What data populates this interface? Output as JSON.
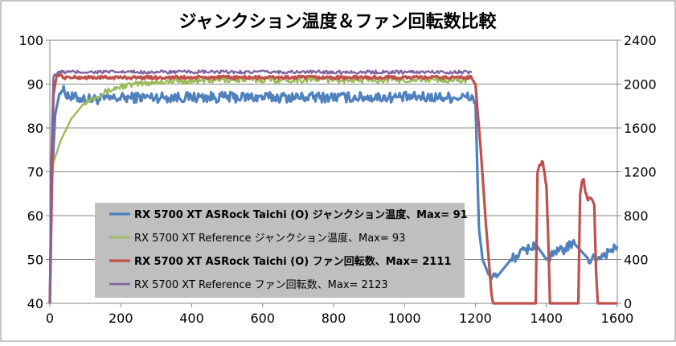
{
  "chart_data": {
    "type": "line",
    "title": "ジャンクション温度＆ファン回転数比較",
    "xlabel": "",
    "ylabel": "",
    "y2label": "",
    "xlim": [
      0,
      1600
    ],
    "ylim": [
      40,
      100
    ],
    "y2lim": [
      0,
      2400
    ],
    "x_ticks": [
      "0",
      "200",
      "400",
      "600",
      "800",
      "1000",
      "1200",
      "1400",
      "1600"
    ],
    "y_ticks": [
      "40",
      "50",
      "60",
      "70",
      "80",
      "90",
      "100"
    ],
    "y2_ticks": [
      "0",
      "400",
      "800",
      "1200",
      "1600",
      "2000",
      "2400"
    ],
    "grid": "horizontal",
    "legend_position": "center-left",
    "series": [
      {
        "name": "RX 5700 XT ASRock Taichi (O) ジャンクション温度、Max= 91",
        "axis": "left",
        "color": "#4f81bd",
        "bold": true,
        "x": [
          0,
          5,
          15,
          30,
          60,
          120,
          250,
          500,
          800,
          1100,
          1190,
          1200,
          1210,
          1220,
          1240,
          1260,
          1300,
          1340,
          1370,
          1400,
          1440,
          1480,
          1520,
          1560,
          1600
        ],
        "y": [
          40,
          66,
          83,
          89,
          87,
          86.5,
          87,
          87,
          87,
          87,
          87,
          86,
          57,
          50,
          46,
          46,
          50,
          52,
          53.5,
          50,
          52,
          53.5,
          50,
          51,
          53
        ]
      },
      {
        "name": "RX 5700 XT Reference ジャンクション温度、Max= 93",
        "axis": "left",
        "color": "#9bbb59",
        "bold": false,
        "x": [
          0,
          3,
          10,
          30,
          60,
          100,
          150,
          200,
          300,
          500,
          800,
          1000,
          1190
        ],
        "y": [
          40,
          64,
          72,
          77,
          82,
          86,
          88,
          89.5,
          90.5,
          91,
          91,
          91,
          91
        ]
      },
      {
        "name": "RX 5700 XT ASRock Taichi (O) ファン回転数、Max= 2111",
        "axis": "right",
        "color": "#c0504d",
        "bold": true,
        "x": [
          0,
          5,
          10,
          20,
          40,
          100,
          400,
          800,
          1190,
          1200,
          1215,
          1230,
          1245,
          1250,
          1370,
          1375,
          1380,
          1385,
          1390,
          1395,
          1400,
          1405,
          1410,
          1490,
          1495,
          1500,
          1505,
          1510,
          1515,
          1520,
          1525,
          1530,
          1535,
          1540,
          1545,
          1600
        ],
        "y": [
          0,
          900,
          1900,
          2100,
          2060,
          2060,
          2060,
          2060,
          2060,
          2000,
          1400,
          700,
          100,
          0,
          0,
          1200,
          1250,
          1270,
          1300,
          1180,
          1070,
          600,
          0,
          0,
          1000,
          1120,
          1120,
          1020,
          950,
          950,
          950,
          950,
          900,
          300,
          0,
          0
        ]
      },
      {
        "name": "RX 5700 XT Reference ファン回転数、Max= 2123",
        "axis": "right",
        "color": "#8064a2",
        "bold": false,
        "x": [
          0,
          3,
          10,
          30,
          200,
          600,
          1000,
          1190
        ],
        "y": [
          0,
          1200,
          2080,
          2110,
          2110,
          2110,
          2110,
          2110
        ]
      }
    ]
  }
}
